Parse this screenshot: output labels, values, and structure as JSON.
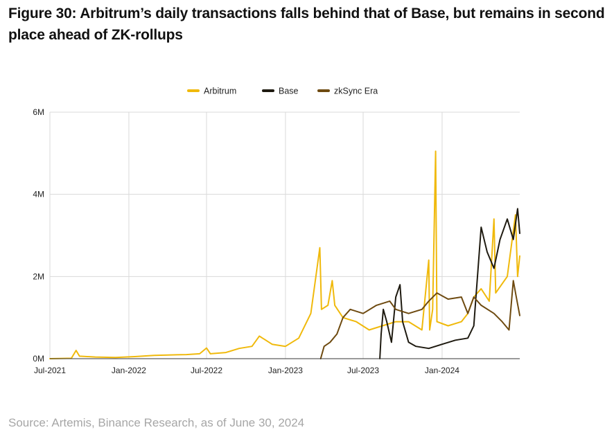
{
  "title": "Figure 30: Arbitrum’s daily transactions falls behind that of Base, but remains in second place ahead of ZK-rollups",
  "source": "Source: Artemis, Binance Research, as of June 30, 2024",
  "chart_data": {
    "type": "line",
    "title": "Figure 30: Arbitrum’s daily transactions falls behind that of Base, but remains in second place ahead of ZK-rollups",
    "xlabel": "",
    "ylabel": "",
    "x_range": [
      "2021-07-01",
      "2024-06-30"
    ],
    "ylim": [
      0,
      6000000
    ],
    "y_ticks": [
      {
        "value": 0,
        "label": "0M"
      },
      {
        "value": 2000000,
        "label": "2M"
      },
      {
        "value": 4000000,
        "label": "4M"
      },
      {
        "value": 6000000,
        "label": "6M"
      }
    ],
    "x_ticks": [
      {
        "value": "2021-07-01",
        "label": "Jul-2021"
      },
      {
        "value": "2022-01-01",
        "label": "Jan-2022"
      },
      {
        "value": "2022-07-01",
        "label": "Jul-2022"
      },
      {
        "value": "2023-01-01",
        "label": "Jan-2023"
      },
      {
        "value": "2023-07-01",
        "label": "Jul-2023"
      },
      {
        "value": "2024-01-01",
        "label": "Jan-2024"
      }
    ],
    "legend_position": "top-center",
    "grid": "vertical",
    "series": [
      {
        "name": "Arbitrum",
        "color": "#f0b90b",
        "points": [
          [
            "2021-07-01",
            0
          ],
          [
            "2021-08-20",
            10000
          ],
          [
            "2021-08-31",
            200000
          ],
          [
            "2021-09-08",
            60000
          ],
          [
            "2021-10-15",
            40000
          ],
          [
            "2021-12-01",
            30000
          ],
          [
            "2022-01-15",
            50000
          ],
          [
            "2022-03-01",
            80000
          ],
          [
            "2022-04-01",
            90000
          ],
          [
            "2022-05-15",
            100000
          ],
          [
            "2022-06-15",
            120000
          ],
          [
            "2022-07-01",
            260000
          ],
          [
            "2022-07-10",
            120000
          ],
          [
            "2022-08-15",
            150000
          ],
          [
            "2022-09-15",
            250000
          ],
          [
            "2022-10-15",
            300000
          ],
          [
            "2022-11-01",
            550000
          ],
          [
            "2022-12-01",
            350000
          ],
          [
            "2023-01-01",
            300000
          ],
          [
            "2023-02-01",
            500000
          ],
          [
            "2023-03-01",
            1100000
          ],
          [
            "2023-03-22",
            2700000
          ],
          [
            "2023-03-26",
            1200000
          ],
          [
            "2023-04-10",
            1300000
          ],
          [
            "2023-04-20",
            1900000
          ],
          [
            "2023-04-26",
            1300000
          ],
          [
            "2023-05-15",
            1000000
          ],
          [
            "2023-06-15",
            900000
          ],
          [
            "2023-07-15",
            700000
          ],
          [
            "2023-08-15",
            800000
          ],
          [
            "2023-09-15",
            900000
          ],
          [
            "2023-10-15",
            900000
          ],
          [
            "2023-11-15",
            700000
          ],
          [
            "2023-12-01",
            2400000
          ],
          [
            "2023-12-03",
            700000
          ],
          [
            "2023-12-10",
            1200000
          ],
          [
            "2023-12-17",
            5050000
          ],
          [
            "2023-12-20",
            900000
          ],
          [
            "2024-01-15",
            800000
          ],
          [
            "2024-02-15",
            900000
          ],
          [
            "2024-03-01",
            1100000
          ],
          [
            "2024-03-15",
            1500000
          ],
          [
            "2024-04-01",
            1700000
          ],
          [
            "2024-04-20",
            1400000
          ],
          [
            "2024-05-01",
            3400000
          ],
          [
            "2024-05-05",
            1600000
          ],
          [
            "2024-06-01",
            2000000
          ],
          [
            "2024-06-20",
            3500000
          ],
          [
            "2024-06-25",
            2000000
          ],
          [
            "2024-06-30",
            2500000
          ]
        ]
      },
      {
        "name": "Base",
        "color": "#1e1a10",
        "points": [
          [
            "2023-08-09",
            0
          ],
          [
            "2023-08-12",
            600000
          ],
          [
            "2023-08-17",
            1200000
          ],
          [
            "2023-08-25",
            900000
          ],
          [
            "2023-09-05",
            400000
          ],
          [
            "2023-09-15",
            1500000
          ],
          [
            "2023-09-25",
            1800000
          ],
          [
            "2023-10-01",
            900000
          ],
          [
            "2023-10-15",
            400000
          ],
          [
            "2023-11-01",
            300000
          ],
          [
            "2023-12-01",
            250000
          ],
          [
            "2024-01-01",
            350000
          ],
          [
            "2024-02-01",
            450000
          ],
          [
            "2024-03-01",
            500000
          ],
          [
            "2024-03-15",
            800000
          ],
          [
            "2024-04-01",
            3200000
          ],
          [
            "2024-04-15",
            2600000
          ],
          [
            "2024-05-01",
            2200000
          ],
          [
            "2024-05-15",
            2900000
          ],
          [
            "2024-06-01",
            3400000
          ],
          [
            "2024-06-15",
            2900000
          ],
          [
            "2024-06-25",
            3650000
          ],
          [
            "2024-06-30",
            3050000
          ]
        ]
      },
      {
        "name": "zkSync Era",
        "color": "#6e4a10",
        "points": [
          [
            "2023-03-24",
            0
          ],
          [
            "2023-04-01",
            300000
          ],
          [
            "2023-04-15",
            400000
          ],
          [
            "2023-05-01",
            600000
          ],
          [
            "2023-05-15",
            1000000
          ],
          [
            "2023-06-01",
            1200000
          ],
          [
            "2023-07-01",
            1100000
          ],
          [
            "2023-08-01",
            1300000
          ],
          [
            "2023-09-01",
            1400000
          ],
          [
            "2023-09-15",
            1200000
          ],
          [
            "2023-10-15",
            1100000
          ],
          [
            "2023-11-15",
            1200000
          ],
          [
            "2023-12-01",
            1400000
          ],
          [
            "2023-12-20",
            1600000
          ],
          [
            "2024-01-15",
            1450000
          ],
          [
            "2024-02-15",
            1500000
          ],
          [
            "2024-03-01",
            1100000
          ],
          [
            "2024-03-15",
            1500000
          ],
          [
            "2024-04-01",
            1300000
          ],
          [
            "2024-05-01",
            1100000
          ],
          [
            "2024-05-20",
            900000
          ],
          [
            "2024-06-05",
            700000
          ],
          [
            "2024-06-15",
            1900000
          ],
          [
            "2024-06-22",
            1500000
          ],
          [
            "2024-06-30",
            1050000
          ]
        ]
      }
    ]
  }
}
